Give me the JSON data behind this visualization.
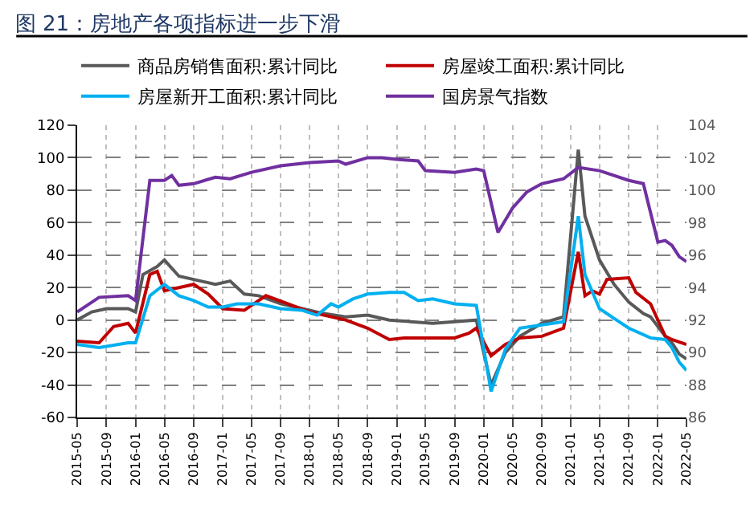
{
  "chart_data": {
    "type": "line",
    "title": "图 21：房地产各项指标进一步下滑",
    "xlim": [
      "2015-05",
      "2022-05"
    ],
    "xticks": [
      "2015-05",
      "2015-09",
      "2016-01",
      "2016-05",
      "2016-09",
      "2017-01",
      "2017-05",
      "2017-09",
      "2018-01",
      "2018-05",
      "2018-09",
      "2019-01",
      "2019-05",
      "2019-09",
      "2020-01",
      "2020-05",
      "2020-09",
      "2021-01",
      "2021-05",
      "2021-09",
      "2022-01",
      "2022-05"
    ],
    "ylim": [
      -60,
      120
    ],
    "yticks": [
      -60,
      -40,
      -20,
      0,
      20,
      40,
      60,
      80,
      100,
      120
    ],
    "y2lim": [
      86,
      104
    ],
    "y2ticks": [
      86,
      88,
      90,
      92,
      94,
      96,
      98,
      100,
      102,
      104
    ],
    "grid": true,
    "legend": "top",
    "line_style": "solid",
    "marker": "none",
    "series": [
      {
        "name": "商品房销售面积:累计同比",
        "color": "#595959",
        "x": [
          "2015-05",
          "2015-07",
          "2015-09",
          "2015-12",
          "2016-01",
          "2016-02",
          "2016-04",
          "2016-05",
          "2016-07",
          "2016-09",
          "2016-12",
          "2017-02",
          "2017-04",
          "2017-06",
          "2017-09",
          "2017-12",
          "2018-03",
          "2018-06",
          "2018-09",
          "2018-12",
          "2019-03",
          "2019-06",
          "2019-09",
          "2019-12",
          "2020-02",
          "2020-04",
          "2020-06",
          "2020-09",
          "2020-12",
          "2021-02",
          "2021-03",
          "2021-05",
          "2021-07",
          "2021-09",
          "2021-11",
          "2021-12",
          "2022-02",
          "2022-03",
          "2022-04",
          "2022-05"
        ],
        "values": [
          0,
          5,
          7,
          7,
          5,
          28,
          33,
          37,
          27,
          25,
          22,
          24,
          16,
          15,
          10,
          7,
          4,
          2,
          3,
          0,
          -1,
          -2,
          -1,
          0,
          -40,
          -20,
          -10,
          -2,
          2,
          105,
          64,
          37,
          22,
          11,
          4,
          2,
          -10,
          -14,
          -21,
          -24
        ]
      },
      {
        "name": "房屋竣工面积:累计同比",
        "color": "#c00000",
        "x": [
          "2015-05",
          "2015-08",
          "2015-10",
          "2015-12",
          "2016-01",
          "2016-03",
          "2016-04",
          "2016-05",
          "2016-07",
          "2016-09",
          "2016-11",
          "2017-01",
          "2017-04",
          "2017-07",
          "2017-10",
          "2018-01",
          "2018-04",
          "2018-06",
          "2018-09",
          "2018-12",
          "2019-02",
          "2019-05",
          "2019-09",
          "2019-11",
          "2019-12",
          "2020-02",
          "2020-04",
          "2020-06",
          "2020-09",
          "2020-12",
          "2021-02",
          "2021-03",
          "2021-04",
          "2021-05",
          "2021-06",
          "2021-09",
          "2021-10",
          "2021-12",
          "2022-02",
          "2022-03",
          "2022-05"
        ],
        "values": [
          -13,
          -14,
          -4,
          -2,
          -8,
          28,
          30,
          18,
          20,
          22,
          16,
          7,
          6,
          15,
          10,
          5,
          2,
          0,
          -5,
          -12,
          -11,
          -11,
          -11,
          -8,
          -5,
          -22,
          -15,
          -11,
          -10,
          -5,
          42,
          15,
          18,
          16,
          25,
          26,
          17,
          10,
          -10,
          -12,
          -15
        ]
      },
      {
        "name": "房屋新开工面积:累计同比",
        "color": "#00b0f0",
        "x": [
          "2015-05",
          "2015-08",
          "2015-12",
          "2016-01",
          "2016-03",
          "2016-05",
          "2016-07",
          "2016-09",
          "2016-11",
          "2017-01",
          "2017-03",
          "2017-06",
          "2017-09",
          "2017-12",
          "2018-02",
          "2018-04",
          "2018-05",
          "2018-07",
          "2018-09",
          "2018-12",
          "2019-02",
          "2019-04",
          "2019-06",
          "2019-09",
          "2019-12",
          "2020-02",
          "2020-04",
          "2020-06",
          "2020-09",
          "2020-12",
          "2021-02",
          "2021-03",
          "2021-05",
          "2021-07",
          "2021-09",
          "2021-12",
          "2022-02",
          "2022-03",
          "2022-04",
          "2022-05"
        ],
        "values": [
          -15,
          -17,
          -14,
          -14,
          15,
          22,
          15,
          12,
          8,
          8,
          10,
          10,
          7,
          6,
          3,
          10,
          8,
          13,
          16,
          17,
          17,
          12,
          13,
          10,
          9,
          -44,
          -18,
          -5,
          -3,
          -1,
          64,
          28,
          7,
          1,
          -5,
          -11,
          -12,
          -17,
          -26,
          -31
        ]
      },
      {
        "name": "国房景气指数",
        "color": "#7030a0",
        "axis": "y2",
        "x": [
          "2015-05",
          "2015-08",
          "2015-12",
          "2016-01",
          "2016-03",
          "2016-05",
          "2016-06",
          "2016-07",
          "2016-09",
          "2016-12",
          "2017-02",
          "2017-05",
          "2017-09",
          "2018-01",
          "2018-05",
          "2018-06",
          "2018-09",
          "2018-11",
          "2019-01",
          "2019-04",
          "2019-05",
          "2019-09",
          "2019-12",
          "2020-01",
          "2020-03",
          "2020-05",
          "2020-07",
          "2020-09",
          "2020-12",
          "2021-02",
          "2021-05",
          "2021-07",
          "2021-09",
          "2021-11",
          "2022-01",
          "2022-02",
          "2022-03",
          "2022-04",
          "2022-05"
        ],
        "values": [
          92.5,
          93.4,
          93.5,
          93.2,
          100.6,
          100.6,
          100.9,
          100.3,
          100.4,
          100.8,
          100.7,
          101.1,
          101.5,
          101.7,
          101.8,
          101.6,
          102,
          102,
          101.9,
          101.8,
          101.2,
          101.1,
          101.3,
          101.2,
          97.4,
          98.9,
          99.9,
          100.4,
          100.7,
          101.4,
          101.2,
          100.9,
          100.6,
          100.4,
          96.8,
          96.9,
          96.6,
          95.9,
          95.6
        ]
      }
    ]
  }
}
